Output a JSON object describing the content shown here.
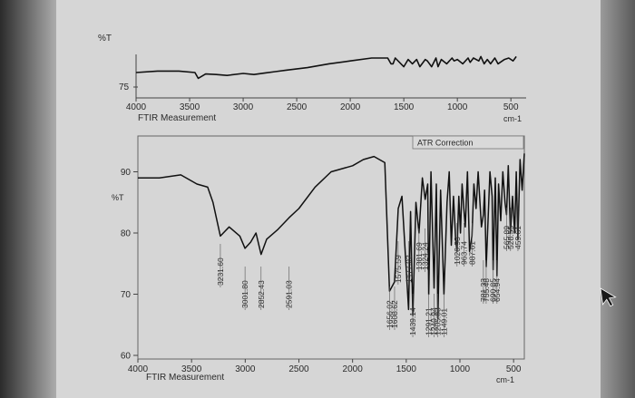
{
  "cursor_icon": "mouse-pointer-icon",
  "chart_data": [
    {
      "type": "line",
      "ylabel": "%T",
      "y_tick": "75",
      "x_ticks": [
        "4000",
        "3500",
        "3000",
        "2500",
        "2000",
        "1500",
        "1000",
        "500"
      ],
      "xunit": "cm-1",
      "xlabel": "FTIR Measurement",
      "xlim": [
        4000,
        400
      ],
      "x": [
        4000,
        3800,
        3600,
        3450,
        3420,
        3350,
        3250,
        3150,
        3000,
        2900,
        2800,
        2700,
        2600,
        2400,
        2200,
        2000,
        1800,
        1650,
        1620,
        1600,
        1580,
        1500,
        1460,
        1420,
        1380,
        1350,
        1300,
        1280,
        1240,
        1200,
        1180,
        1150,
        1100,
        1050,
        1030,
        1000,
        950,
        900,
        880,
        850,
        800,
        780,
        750,
        720,
        690,
        650,
        620,
        560,
        520,
        480,
        450
      ],
      "y": [
        80,
        80.5,
        80.5,
        80,
        78,
        79.5,
        79.3,
        79,
        79.7,
        79.3,
        79.8,
        80.3,
        80.8,
        81.7,
        83,
        84,
        85,
        85,
        83,
        83,
        85,
        82,
        84.5,
        83,
        84.5,
        82,
        84.5,
        84,
        82,
        85,
        82,
        84.5,
        83,
        85,
        84,
        84.5,
        83,
        85,
        83.5,
        85,
        84,
        85.5,
        83,
        84.5,
        83,
        85,
        83,
        84.5,
        85,
        84,
        85.5
      ]
    },
    {
      "type": "line",
      "ylabel": "%T",
      "y_ticks": [
        "90",
        "80",
        "70",
        "60"
      ],
      "ylim": [
        60,
        95
      ],
      "x_ticks": [
        "4000",
        "3500",
        "3000",
        "2500",
        "2000",
        "1500",
        "1000",
        "500"
      ],
      "xunit": "cm-1",
      "xlabel": "FTIR Measurement",
      "xlim": [
        4000,
        400
      ],
      "annotation": "ATR Correction",
      "x": [
        4000,
        3800,
        3600,
        3450,
        3350,
        3300,
        3232,
        3150,
        3050,
        3002,
        2950,
        2900,
        2852,
        2800,
        2700,
        2591,
        2500,
        2350,
        2200,
        2000,
        1900,
        1800,
        1700,
        1656,
        1609,
        1575,
        1540,
        1478,
        1460,
        1439,
        1410,
        1381,
        1350,
        1324,
        1300,
        1291,
        1270,
        1241,
        1220,
        1205,
        1180,
        1149,
        1120,
        1100,
        1080,
        1060,
        1040,
        1027,
        1010,
        995,
        980,
        964,
        950,
        930,
        910,
        888,
        870,
        850,
        830,
        800,
        781,
        770,
        755,
        720,
        700,
        691,
        670,
        655,
        640,
        620,
        600,
        580,
        566,
        550,
        529,
        510,
        490,
        475,
        460,
        440,
        420,
        400
      ],
      "y": [
        89,
        89,
        89.5,
        88,
        87.5,
        85,
        79.5,
        81,
        79.5,
        77.5,
        78.5,
        80,
        76.5,
        79,
        80.5,
        82.5,
        84,
        87.5,
        90,
        91,
        92,
        92.5,
        91.5,
        70.5,
        72,
        84,
        86,
        67.5,
        83.5,
        66.5,
        85,
        80,
        89,
        85.5,
        88,
        70,
        90,
        71,
        88,
        66,
        87,
        70,
        85,
        90,
        78,
        86,
        79,
        77,
        86,
        80,
        88,
        84,
        81,
        90,
        77,
        79.5,
        88,
        84,
        90,
        81,
        83,
        87,
        74.5,
        90,
        86,
        74,
        89,
        73,
        88,
        82,
        90,
        85,
        83,
        91,
        80,
        86,
        80,
        90,
        79,
        92,
        87,
        93
      ]
    }
  ],
  "peak_labels": [
    "3231.60",
    "3001.80",
    "2852.43",
    "2591.03",
    "1656.02",
    "1608.62",
    "1575.59",
    "1477.92",
    "1439.14",
    "1381.69",
    "1324.24",
    "1291.21",
    "1240.94",
    "1205.03",
    "1149.01",
    "1026.93",
    "963.74",
    "887.61",
    "781.33",
    "755.48",
    "690.85",
    "654.94",
    "565.89",
    "528.55",
    "459.61"
  ]
}
